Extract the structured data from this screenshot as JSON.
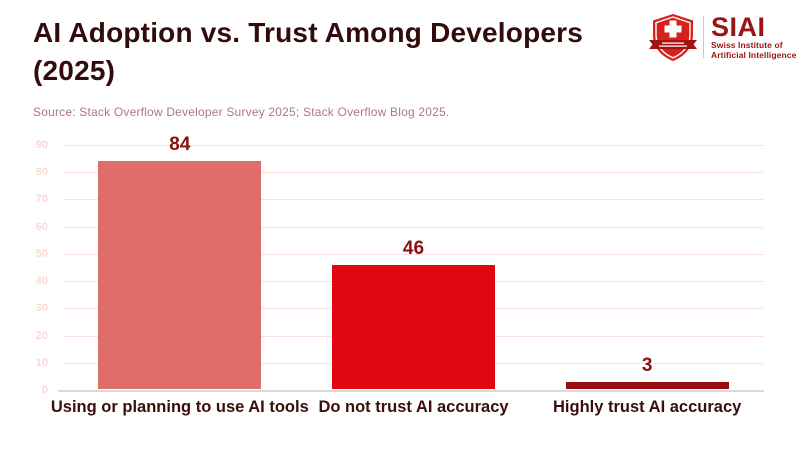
{
  "header": {
    "title": "AI Adoption vs. Trust Among Developers (2025)",
    "source": "Source: Stack Overflow Developer Survey 2025; Stack Overflow Blog 2025."
  },
  "logo": {
    "acronym": "SIAI",
    "subtitle_line1": "Swiss Institute of",
    "subtitle_line2": "Artificial Intelligence",
    "shield_color": "#d8201d",
    "ribbon_color": "#a51210",
    "text_color": "#9b1414"
  },
  "chart_data": {
    "type": "bar",
    "title": "AI Adoption vs. Trust Among Developers (2025)",
    "categories": [
      "Using or planning to use AI tools",
      "Do not trust AI accuracy",
      "Highly trust AI accuracy"
    ],
    "values": [
      84,
      46,
      3
    ],
    "bar_colors": [
      "#e06c6c",
      "#e00711",
      "#9b0d0d"
    ],
    "value_label_color": "#8b1010",
    "category_label_color": "#3a0e0d",
    "xlabel": "",
    "ylabel": "",
    "ylim": [
      0,
      90
    ],
    "ytick_step": 10,
    "grid": true,
    "gridline_color": "#f9e3df",
    "tick_label_color": "#fbd9d4",
    "axis_line_color": "#d9d9d9",
    "legend": "none"
  }
}
